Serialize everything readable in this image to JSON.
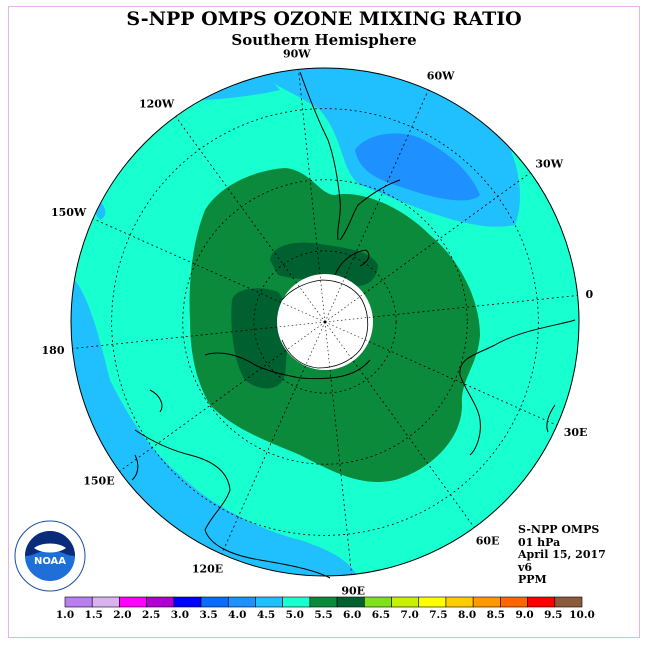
{
  "title": "S-NPP OMPS OZONE MIXING RATIO",
  "subtitle": "Southern Hemisphere",
  "longitude_labels": [
    {
      "text": "0",
      "lon": 0
    },
    {
      "text": "30E",
      "lon": 30
    },
    {
      "text": "60E",
      "lon": 60
    },
    {
      "text": "90E",
      "lon": 90
    },
    {
      "text": "120E",
      "lon": 120
    },
    {
      "text": "150E",
      "lon": 150
    },
    {
      "text": "180",
      "lon": 180
    },
    {
      "text": "150W",
      "lon": 210
    },
    {
      "text": "120W",
      "lon": 240
    },
    {
      "text": "90W",
      "lon": 270
    },
    {
      "text": "60W",
      "lon": 300
    },
    {
      "text": "30W",
      "lon": 330
    }
  ],
  "info": {
    "instrument": "S-NPP OMPS",
    "level": "01 hPa",
    "date": "April 15, 2017",
    "version": "v6",
    "units": "PPM"
  },
  "logo": {
    "text": "NOAA"
  },
  "colorbar": {
    "labels": [
      "1.0",
      "1.5",
      "2.0",
      "2.5",
      "3.0",
      "3.5",
      "4.0",
      "4.5",
      "5.0",
      "5.5",
      "6.0",
      "6.5",
      "7.0",
      "7.5",
      "8.0",
      "8.5",
      "9.0",
      "9.5",
      "10.0"
    ],
    "colors": [
      "#b87ff0",
      "#d9b3f0",
      "#ff00ff",
      "#b000d0",
      "#0000ff",
      "#0a6cff",
      "#1e90ff",
      "#20c0ff",
      "#18ffd0",
      "#0a8a3a",
      "#006030",
      "#80e020",
      "#c8f000",
      "#ffff00",
      "#ffcc00",
      "#ff9900",
      "#ff6600",
      "#ff0000",
      "#8b5a3a"
    ]
  },
  "map_colors": {
    "background": "#18ffd0",
    "mid_blue": "#20c0ff",
    "dark_blue": "#1e90ff",
    "green": "#0a8a3a",
    "dark_green": "#006030",
    "pole_hole": "#ffffff"
  }
}
